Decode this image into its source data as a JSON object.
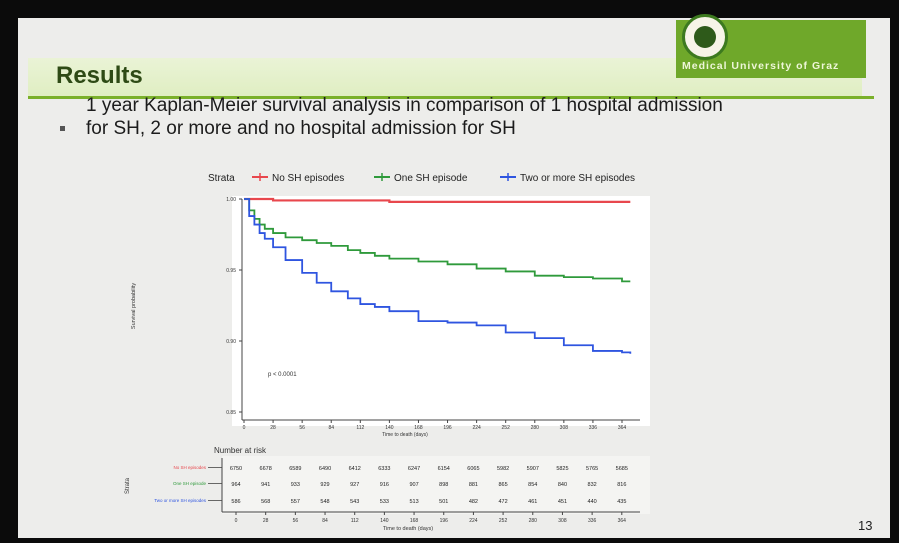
{
  "slide": {
    "title": "Results",
    "bullet_line1": "1 year Kaplan-Meier survival analysis in comparison of 1 hospital admission",
    "bullet_line2": "for SH, 2 or more and no hospital admission for SH",
    "university": "Medical University of Graz",
    "page_number": "13"
  },
  "colors": {
    "no_sh": "#e8474d",
    "one_sh": "#2f9a3b",
    "two_sh": "#2f55e0",
    "accent": "#7ab02a"
  },
  "chart_data": {
    "type": "line",
    "legend_title": "Strata",
    "legend_position": "top",
    "xlabel": "Time to death (days)",
    "ylabel": "Survival probability",
    "xlim": [
      0,
      378
    ],
    "ylim": [
      0.85,
      1.0
    ],
    "x_ticks": [
      0,
      28,
      56,
      84,
      112,
      140,
      168,
      196,
      224,
      252,
      280,
      308,
      336,
      364
    ],
    "y_ticks": [
      0.85,
      0.9,
      0.95,
      1.0
    ],
    "y_tick_labels": [
      "0.85",
      "0.90",
      "0.95",
      "1.00"
    ],
    "pvalue_label": "p < 0.0001",
    "series": [
      {
        "name": "No SH episodes",
        "x": [
          0,
          28,
          84,
          140,
          196,
          252,
          308,
          364,
          372
        ],
        "y": [
          1.0,
          0.999,
          0.999,
          0.998,
          0.998,
          0.998,
          0.998,
          0.998,
          0.998
        ]
      },
      {
        "name": "One SH episode",
        "x": [
          0,
          5,
          10,
          15,
          20,
          28,
          40,
          56,
          70,
          84,
          100,
          112,
          126,
          140,
          168,
          196,
          224,
          252,
          280,
          308,
          336,
          364,
          372
        ],
        "y": [
          1.0,
          0.992,
          0.986,
          0.982,
          0.979,
          0.976,
          0.973,
          0.971,
          0.969,
          0.967,
          0.964,
          0.962,
          0.96,
          0.958,
          0.956,
          0.954,
          0.951,
          0.949,
          0.946,
          0.945,
          0.944,
          0.942,
          0.942
        ]
      },
      {
        "name": "Two or more SH episodes",
        "x": [
          0,
          5,
          10,
          15,
          20,
          28,
          40,
          56,
          70,
          84,
          100,
          112,
          126,
          140,
          168,
          196,
          224,
          252,
          280,
          308,
          336,
          364,
          372
        ],
        "y": [
          1.0,
          0.988,
          0.982,
          0.976,
          0.972,
          0.966,
          0.957,
          0.948,
          0.941,
          0.935,
          0.93,
          0.926,
          0.924,
          0.921,
          0.914,
          0.913,
          0.911,
          0.906,
          0.902,
          0.897,
          0.893,
          0.892,
          0.891
        ]
      }
    ],
    "risk_table": {
      "title": "Number at risk",
      "axis_label": "Strata",
      "xlabel": "Time to death (days)",
      "times": [
        0,
        28,
        56,
        84,
        112,
        140,
        168,
        196,
        224,
        252,
        280,
        308,
        336,
        364
      ],
      "rows": [
        {
          "name": "No SH episodes",
          "values": [
            6750,
            6678,
            6589,
            6490,
            6412,
            6333,
            6247,
            6154,
            6065,
            5982,
            5907,
            5825,
            5765,
            5685
          ]
        },
        {
          "name": "One SH episode",
          "values": [
            964,
            941,
            933,
            929,
            927,
            916,
            907,
            898,
            881,
            865,
            854,
            840,
            832,
            816
          ]
        },
        {
          "name": "Two or more SH episodes",
          "values": [
            586,
            568,
            557,
            548,
            543,
            533,
            513,
            501,
            482,
            472,
            461,
            451,
            440,
            435
          ]
        }
      ]
    }
  }
}
